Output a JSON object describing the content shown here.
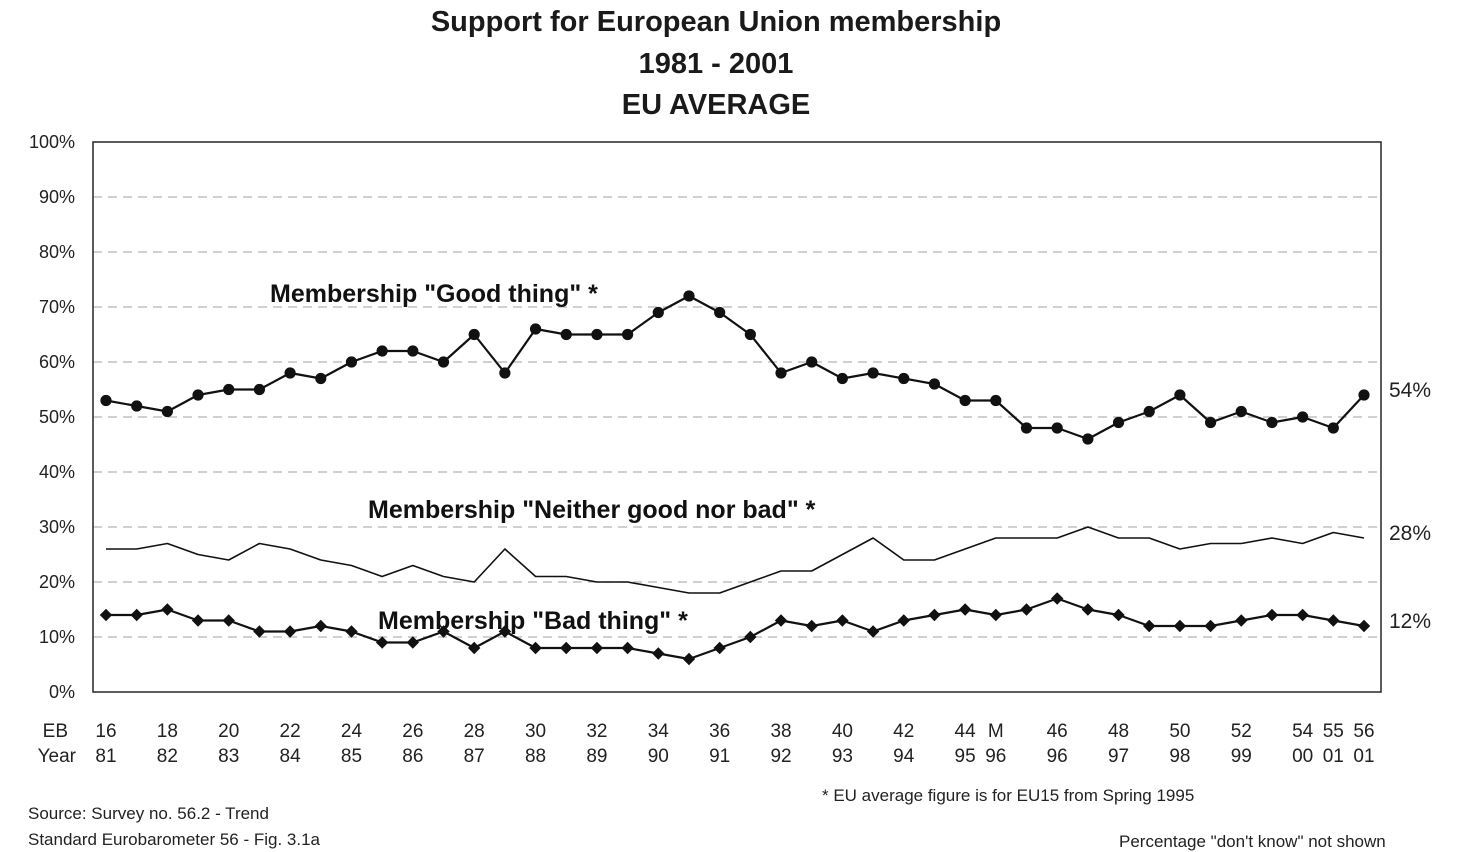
{
  "chart_data": {
    "type": "line",
    "title": "Support for European Union membership",
    "subtitle1": "1981 - 2001",
    "subtitle2": "EU AVERAGE",
    "ylim": [
      0,
      100
    ],
    "yticks": [
      "0%",
      "10%",
      "20%",
      "30%",
      "40%",
      "50%",
      "60%",
      "70%",
      "80%",
      "90%",
      "100%"
    ],
    "grid": true,
    "x_row_labels": [
      "EB",
      "Year"
    ],
    "eb_labels": [
      "16",
      "",
      "18",
      "",
      "20",
      "",
      "22",
      "",
      "24",
      "",
      "26",
      "",
      "28",
      "",
      "30",
      "",
      "32",
      "",
      "34",
      "",
      "36",
      "",
      "38",
      "",
      "40",
      "",
      "42",
      "",
      "44",
      "M",
      "",
      "46",
      "",
      "48",
      "",
      "50",
      "",
      "52",
      "",
      "54",
      "55",
      "56"
    ],
    "year_labels": [
      "81",
      "",
      "82",
      "",
      "83",
      "",
      "84",
      "",
      "85",
      "",
      "86",
      "",
      "87",
      "",
      "88",
      "",
      "89",
      "",
      "90",
      "",
      "91",
      "",
      "92",
      "",
      "93",
      "",
      "94",
      "",
      "95",
      "96",
      "",
      "96",
      "",
      "97",
      "",
      "98",
      "",
      "99",
      "",
      "00",
      "01",
      "01"
    ],
    "series": [
      {
        "name": "Membership \"Good thing\" *",
        "marker": "circle",
        "end_label": "54%",
        "values": [
          53,
          52,
          51,
          54,
          55,
          55,
          58,
          57,
          60,
          62,
          62,
          60,
          65,
          58,
          66,
          65,
          65,
          65,
          69,
          72,
          69,
          65,
          58,
          60,
          57,
          58,
          57,
          56,
          53,
          53,
          48,
          48,
          46,
          49,
          51,
          54,
          49,
          51,
          49,
          50,
          48,
          54
        ]
      },
      {
        "name": "Membership \"Neither good nor bad\" *",
        "marker": "none",
        "end_label": "28%",
        "values": [
          26,
          26,
          27,
          25,
          24,
          27,
          26,
          24,
          23,
          21,
          23,
          21,
          20,
          26,
          21,
          21,
          20,
          20,
          19,
          18,
          18,
          20,
          22,
          22,
          25,
          28,
          24,
          24,
          26,
          28,
          28,
          28,
          30,
          28,
          28,
          26,
          27,
          27,
          28,
          27,
          29,
          28
        ]
      },
      {
        "name": "Membership \"Bad thing\" *",
        "marker": "diamond",
        "end_label": "12%",
        "values": [
          14,
          14,
          15,
          13,
          13,
          11,
          11,
          12,
          11,
          9,
          9,
          11,
          8,
          11,
          8,
          8,
          8,
          8,
          7,
          6,
          8,
          10,
          13,
          12,
          13,
          11,
          13,
          14,
          15,
          14,
          15,
          17,
          15,
          14,
          12,
          12,
          12,
          13,
          14,
          14,
          13,
          12
        ]
      }
    ],
    "colors": {
      "lines": "#111111",
      "grid": "#b5b5b5",
      "frame": "#333333"
    }
  },
  "notes": {
    "footnote": "* EU average figure is for EU15 from Spring 1995",
    "source1": "Source: Survey no. 56.2 - Trend",
    "source2": "Standard Eurobarometer 56 - Fig. 3.1a",
    "dont_know": "Percentage \"don't know\" not shown"
  }
}
